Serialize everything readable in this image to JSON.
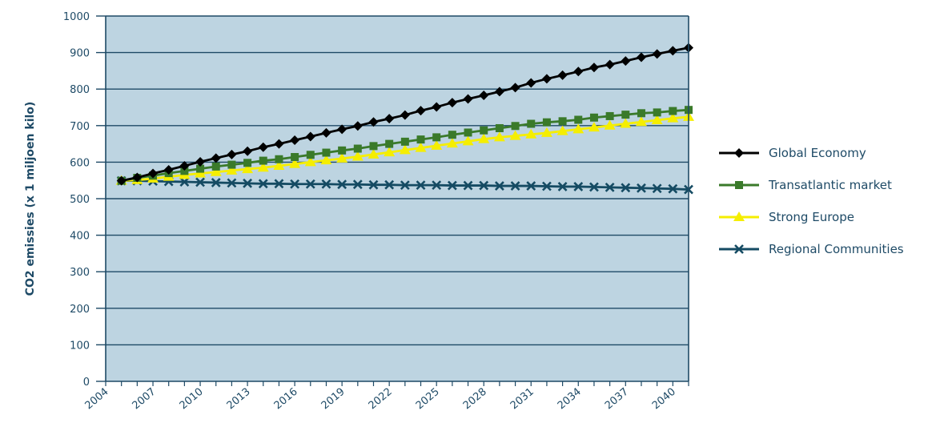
{
  "chart_data": {
    "type": "line",
    "title": "",
    "xlabel": "",
    "ylabel": "CO2 emissies (x 1 miljoen kilo)",
    "ylim": [
      0,
      1000
    ],
    "yticks": [
      "0",
      "100",
      "200",
      "300",
      "400",
      "500",
      "600",
      "700",
      "800",
      "900",
      "1000"
    ],
    "xlim": [
      2004,
      2041
    ],
    "xticks": [
      "2004",
      "2007",
      "2010",
      "2013",
      "2016",
      "2019",
      "2022",
      "2025",
      "2028",
      "2031",
      "2034",
      "2037",
      "2040"
    ],
    "x": [
      2005,
      2006,
      2007,
      2008,
      2009,
      2010,
      2011,
      2012,
      2013,
      2014,
      2015,
      2016,
      2017,
      2018,
      2019,
      2020,
      2021,
      2022,
      2023,
      2024,
      2025,
      2026,
      2027,
      2028,
      2029,
      2030,
      2031,
      2032,
      2033,
      2034,
      2035,
      2036,
      2037,
      2038,
      2039,
      2040,
      2041
    ],
    "grid": "horizontal",
    "plot_background": "#bdd4e1",
    "axis_color": "#1e4a66",
    "legend_position": "right",
    "series": [
      {
        "name": "Global Economy",
        "color": "#000000",
        "marker": "diamond",
        "values": [
          549,
          558,
          569,
          579,
          590,
          601,
          611,
          621,
          630,
          641,
          650,
          660,
          670,
          680,
          690,
          699,
          710,
          719,
          729,
          741,
          751,
          763,
          773,
          783,
          793,
          804,
          817,
          828,
          838,
          848,
          859,
          867,
          877,
          887,
          896,
          905,
          913
        ]
      },
      {
        "name": "Transatlantic market",
        "color": "#3a7a2a",
        "marker": "square",
        "values": [
          549,
          557,
          563,
          570,
          576,
          582,
          588,
          593,
          598,
          604,
          608,
          614,
          620,
          626,
          632,
          637,
          644,
          650,
          656,
          662,
          668,
          675,
          681,
          687,
          693,
          699,
          705,
          709,
          712,
          716,
          722,
          726,
          730,
          734,
          736,
          740,
          743
        ]
      },
      {
        "name": "Strong Europe",
        "color": "#f5ee00",
        "marker": "triangle",
        "values": [
          549,
          551,
          555,
          560,
          565,
          569,
          573,
          577,
          581,
          585,
          590,
          595,
          600,
          605,
          610,
          615,
          621,
          627,
          633,
          639,
          645,
          651,
          657,
          663,
          668,
          672,
          676,
          680,
          685,
          690,
          695,
          700,
          705,
          710,
          715,
          720,
          724
        ]
      },
      {
        "name": "Regional Communities",
        "color": "#154b63",
        "marker": "x",
        "values": [
          549,
          549,
          548,
          547,
          546,
          545,
          544,
          543,
          542,
          541,
          541,
          540,
          540,
          540,
          539,
          539,
          538,
          538,
          537,
          537,
          537,
          536,
          536,
          536,
          535,
          535,
          535,
          534,
          533,
          533,
          532,
          531,
          530,
          529,
          528,
          527,
          525
        ]
      }
    ]
  }
}
